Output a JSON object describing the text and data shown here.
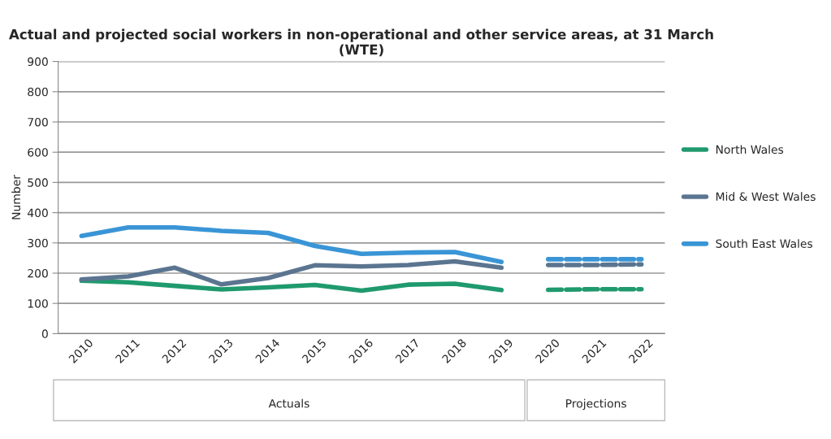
{
  "chart_data": {
    "type": "line",
    "title": "Actual and projected social workers in non-operational and other service areas, at 31 March (WTE)",
    "ylabel": "Number",
    "categories": [
      "2010",
      "2011",
      "2012",
      "2013",
      "2014",
      "2015",
      "2016",
      "2017",
      "2018",
      "2019",
      "2020",
      "2021",
      "2022"
    ],
    "series": [
      {
        "name": "North Wales",
        "color": "#1f9a6e",
        "values": [
          175,
          170,
          158,
          146,
          153,
          161,
          142,
          162,
          165,
          144,
          null,
          null,
          null
        ]
      },
      {
        "name": "Mid & West Wales",
        "color": "#5b7590",
        "values": [
          179,
          189,
          218,
          163,
          184,
          226,
          222,
          227,
          239,
          218,
          null,
          null,
          null
        ]
      },
      {
        "name": "South East Wales",
        "color": "#3a95d6",
        "values": [
          323,
          351,
          351,
          340,
          333,
          290,
          264,
          268,
          270,
          237,
          null,
          null,
          null
        ]
      },
      {
        "color": "#1f9a6e",
        "line_style": "dashed",
        "values": [
          null,
          null,
          null,
          null,
          null,
          null,
          null,
          null,
          null,
          null,
          145,
          147,
          147
        ]
      },
      {
        "color": "#5b7590",
        "line_style": "dashed",
        "values": [
          null,
          null,
          null,
          null,
          null,
          null,
          null,
          null,
          null,
          null,
          227,
          227,
          229
        ]
      },
      {
        "color": "#3a95d6",
        "line_style": "dashed",
        "values": [
          null,
          null,
          null,
          null,
          null,
          null,
          null,
          null,
          null,
          null,
          246,
          246,
          246
        ]
      }
    ],
    "ylim": [
      0,
      900
    ],
    "yticks": [
      0,
      100,
      200,
      300,
      400,
      500,
      600,
      700,
      800,
      900
    ],
    "grid": "y",
    "legend": "right",
    "line_style": "solid",
    "annotations": [
      "Actuals",
      "Projections"
    ]
  }
}
